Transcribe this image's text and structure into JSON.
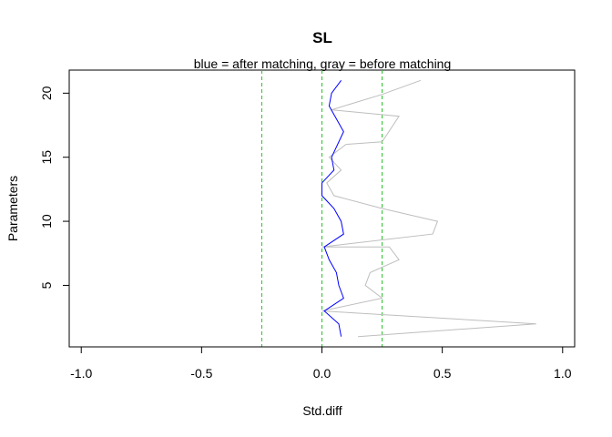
{
  "chart_data": {
    "type": "line",
    "title": "SL",
    "subtitle": "blue = after matching, gray = before matching",
    "xlabel": "Std.diff",
    "ylabel": "Parameters",
    "xlim": [
      -1.05,
      1.05
    ],
    "ylim": [
      0.2,
      21.8
    ],
    "x_ticks": [
      "-1.0",
      "-0.5",
      "0.0",
      "0.5",
      "1.0"
    ],
    "y_ticks": [
      "5",
      "10",
      "15",
      "20"
    ],
    "reference_lines": [
      -0.25,
      0,
      0.25
    ],
    "reference_color": "#22c322",
    "grid": false,
    "series": [
      {
        "color": "#bebebe",
        "points": [
          [
            0.15,
            1
          ],
          [
            0.89,
            2
          ],
          [
            0.0,
            3
          ],
          [
            0.25,
            4
          ],
          [
            0.18,
            5
          ],
          [
            0.2,
            6
          ],
          [
            0.32,
            7
          ],
          [
            0.28,
            8
          ],
          [
            0.0,
            8
          ],
          [
            0.46,
            9
          ],
          [
            0.48,
            10
          ],
          [
            0.25,
            11
          ],
          [
            0.05,
            12
          ],
          [
            0.02,
            13
          ],
          [
            0.08,
            14
          ],
          [
            0.03,
            15
          ],
          [
            0.1,
            16
          ],
          [
            0.25,
            16.2
          ],
          [
            0.32,
            18.2
          ],
          [
            0.04,
            18.7
          ],
          [
            0.25,
            19.9
          ],
          [
            0.41,
            21
          ]
        ]
      },
      {
        "color": "#0000ff",
        "points": [
          [
            0.08,
            1
          ],
          [
            0.07,
            2
          ],
          [
            0.01,
            3
          ],
          [
            0.09,
            4
          ],
          [
            0.07,
            5
          ],
          [
            0.06,
            6
          ],
          [
            0.03,
            7
          ],
          [
            0.01,
            8
          ],
          [
            0.09,
            9
          ],
          [
            0.08,
            10
          ],
          [
            0.05,
            11
          ],
          [
            0.0,
            12
          ],
          [
            0.0,
            13
          ],
          [
            0.05,
            14
          ],
          [
            0.04,
            15
          ],
          [
            0.09,
            17
          ],
          [
            0.03,
            19
          ],
          [
            0.04,
            20
          ],
          [
            0.08,
            21
          ]
        ]
      }
    ]
  }
}
